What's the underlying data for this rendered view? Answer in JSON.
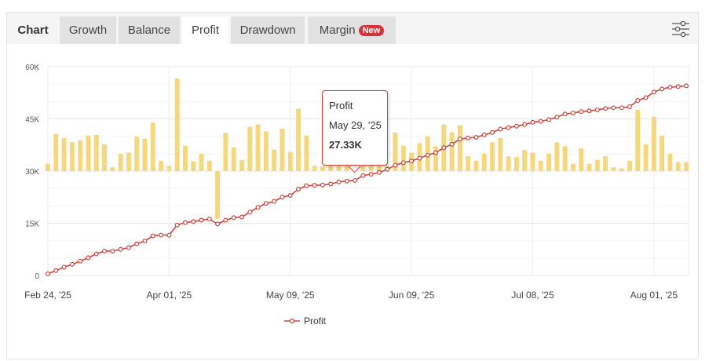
{
  "tabs": {
    "title": "Chart",
    "items": [
      {
        "label": "Growth",
        "active": false
      },
      {
        "label": "Balance",
        "active": false
      },
      {
        "label": "Profit",
        "active": true
      },
      {
        "label": "Drawdown",
        "active": false
      },
      {
        "label": "Margin",
        "active": false,
        "badge": "New"
      }
    ],
    "settings_icon": "sliders-icon"
  },
  "colors": {
    "line": "#c9463d",
    "bars": "#f5d77e",
    "badge": "#d9323a"
  },
  "tooltip": {
    "series": "Profit",
    "date": "May 29, '25",
    "value": "27.33K"
  },
  "chart_data": {
    "type": "line+bar",
    "ylim": [
      0,
      60000
    ],
    "yticks": [
      "0",
      "15K",
      "30K",
      "45K",
      "60K"
    ],
    "ytick_values": [
      0,
      15000,
      30000,
      45000,
      60000
    ],
    "xticks": [
      {
        "index": 0,
        "label": "Feb 24, '25"
      },
      {
        "index": 15,
        "label": "Apr 01, '25"
      },
      {
        "index": 30,
        "label": "May 09, '25"
      },
      {
        "index": 45,
        "label": "Jun 09, '25"
      },
      {
        "index": 60,
        "label": "Jul 08, '25"
      },
      {
        "index": 75,
        "label": "Aug 01, '25"
      }
    ],
    "grid": true,
    "legend": "bottom-center",
    "series": [
      {
        "name": "Profit",
        "type": "line",
        "values": [
          0.45,
          1.4,
          2.4,
          3.2,
          4.1,
          5.1,
          6.2,
          7.0,
          7.0,
          7.5,
          8.0,
          9.1,
          9.9,
          11.4,
          11.6,
          11.6,
          14.5,
          15.2,
          15.5,
          15.9,
          16.2,
          14.8,
          15.9,
          16.6,
          16.8,
          18.2,
          19.6,
          20.7,
          21.3,
          22.5,
          23.0,
          24.8,
          25.8,
          25.9,
          26.0,
          26.3,
          26.9,
          27.1,
          27.33,
          28.7,
          29.1,
          29.6,
          30.5,
          31.7,
          32.4,
          32.9,
          33.7,
          34.6,
          35.3,
          36.7,
          37.7,
          39.2,
          39.5,
          39.7,
          40.4,
          41.1,
          42.1,
          42.5,
          42.9,
          43.4,
          44.0,
          44.3,
          44.8,
          45.5,
          46.4,
          46.7,
          47.1,
          47.3,
          47.6,
          48.0,
          48.2,
          48.2,
          48.5,
          50.3,
          51.1,
          52.7,
          53.6,
          54.1,
          54.3,
          54.5
        ],
        "unit": "K"
      },
      {
        "type": "bar",
        "baseline": 30,
        "values": [
          2.1,
          10.7,
          9.5,
          8.3,
          8.8,
          10.2,
          10.4,
          7.7,
          1.1,
          5.0,
          5.3,
          9.9,
          9.3,
          13.9,
          3.0,
          1.5,
          26.6,
          7.3,
          2.8,
          5.0,
          3.0,
          -13.7,
          11.0,
          6.8,
          3.2,
          12.7,
          13.4,
          11.4,
          6.2,
          12.2,
          5.5,
          17.9,
          10.2,
          1.5,
          1.3,
          1.5,
          1.5,
          1.5,
          1.5,
          1.5,
          1.5,
          1.5,
          1.5,
          11.1,
          7.3,
          5.3,
          8.0,
          10.0,
          7.1,
          13.4,
          11.1,
          13.2,
          4.3,
          3.0,
          5.0,
          8.3,
          9.5,
          4.2,
          4.0,
          6.1,
          5.3,
          3.0,
          5.0,
          8.3,
          7.2,
          2.1,
          6.5,
          2.1,
          3.2,
          4.3,
          1.1,
          0.8,
          3.0,
          17.6,
          7.7,
          15.6,
          10.2,
          5.0,
          2.6,
          2.6
        ],
        "unit": "K"
      }
    ]
  }
}
